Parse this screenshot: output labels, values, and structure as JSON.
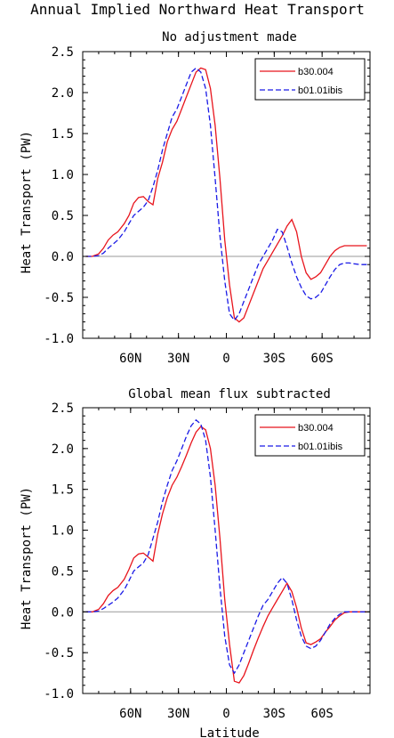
{
  "figure": {
    "title": "Annual Implied Northward Heat Transport",
    "xlabel": "Latitude"
  },
  "chart_data": [
    {
      "type": "line",
      "title": "No adjustment made",
      "ylabel": "Heat Transport (PW)",
      "xlim": [
        90,
        -90
      ],
      "ylim": [
        -1.0,
        2.5
      ],
      "y_ticks": [
        2.5,
        2.0,
        1.5,
        1.0,
        0.5,
        0.0,
        -0.5,
        -1.0
      ],
      "y_tick_labels": [
        "2.5",
        "2.0",
        "1.5",
        "1.0",
        "0.5",
        "0.0",
        "-0.5",
        "-1.0"
      ],
      "x_ticks": [
        60,
        30,
        0,
        -30,
        -60
      ],
      "x_tick_labels": [
        "60N",
        "30N",
        "0",
        "30S",
        "60S"
      ],
      "zero_line": true,
      "legend_position": "top-right",
      "series": [
        {
          "name": "b30.004",
          "color": "#e8141c",
          "dash": "solid",
          "x": [
            88,
            84,
            80,
            77,
            74,
            71,
            68,
            64,
            61,
            58,
            55,
            52,
            49,
            46,
            43,
            40,
            37,
            34,
            31,
            28,
            25,
            22,
            19,
            16,
            13,
            10,
            7,
            4,
            1,
            -2,
            -5,
            -8,
            -11,
            -14,
            -17,
            -20,
            -23,
            -26,
            -29,
            -32,
            -35,
            -38,
            -41,
            -44,
            -47,
            -50,
            -53,
            -56,
            -59,
            -62,
            -65,
            -68,
            -71,
            -74,
            -77,
            -80,
            -84,
            -88
          ],
          "y": [
            0.0,
            0.0,
            0.03,
            0.1,
            0.2,
            0.26,
            0.3,
            0.4,
            0.5,
            0.65,
            0.72,
            0.73,
            0.67,
            0.63,
            0.95,
            1.15,
            1.4,
            1.55,
            1.65,
            1.8,
            1.95,
            2.1,
            2.25,
            2.3,
            2.28,
            2.05,
            1.6,
            0.95,
            0.2,
            -0.35,
            -0.75,
            -0.8,
            -0.75,
            -0.6,
            -0.45,
            -0.3,
            -0.15,
            -0.05,
            0.05,
            0.15,
            0.25,
            0.37,
            0.45,
            0.3,
            0.0,
            -0.2,
            -0.28,
            -0.25,
            -0.2,
            -0.1,
            0.0,
            0.07,
            0.11,
            0.13,
            0.13,
            0.13,
            0.13,
            0.13
          ]
        },
        {
          "name": "b01.01ibis",
          "color": "#1a1ae6",
          "dash": "dashed",
          "x": [
            88,
            84,
            80,
            77,
            74,
            71,
            68,
            64,
            61,
            58,
            55,
            52,
            49,
            46,
            43,
            40,
            37,
            34,
            31,
            28,
            25,
            22,
            19,
            16,
            13,
            10,
            7,
            4,
            1,
            -2,
            -5,
            -8,
            -11,
            -14,
            -17,
            -20,
            -23,
            -26,
            -29,
            -32,
            -35,
            -38,
            -41,
            -44,
            -47,
            -50,
            -53,
            -56,
            -59,
            -62,
            -65,
            -68,
            -71,
            -74,
            -77,
            -80,
            -84,
            -88
          ],
          "y": [
            0.0,
            0.0,
            0.01,
            0.04,
            0.1,
            0.15,
            0.2,
            0.3,
            0.4,
            0.5,
            0.55,
            0.6,
            0.68,
            0.85,
            1.05,
            1.3,
            1.5,
            1.7,
            1.8,
            1.95,
            2.1,
            2.25,
            2.3,
            2.25,
            2.05,
            1.6,
            0.95,
            0.25,
            -0.3,
            -0.7,
            -0.78,
            -0.7,
            -0.55,
            -0.4,
            -0.25,
            -0.1,
            0.0,
            0.1,
            0.2,
            0.33,
            0.3,
            0.12,
            -0.08,
            -0.25,
            -0.38,
            -0.48,
            -0.52,
            -0.5,
            -0.45,
            -0.35,
            -0.25,
            -0.16,
            -0.1,
            -0.08,
            -0.08,
            -0.09,
            -0.1,
            -0.1
          ]
        }
      ]
    },
    {
      "type": "line",
      "title": "Global mean flux subtracted",
      "ylabel": "Heat Transport (PW)",
      "xlim": [
        90,
        -90
      ],
      "ylim": [
        -1.0,
        2.5
      ],
      "y_ticks": [
        2.5,
        2.0,
        1.5,
        1.0,
        0.5,
        0.0,
        -0.5,
        -1.0
      ],
      "y_tick_labels": [
        "2.5",
        "2.0",
        "1.5",
        "1.0",
        "0.5",
        "0.0",
        "-0.5",
        "-1.0"
      ],
      "x_ticks": [
        60,
        30,
        0,
        -30,
        -60
      ],
      "x_tick_labels": [
        "60N",
        "30N",
        "0",
        "30S",
        "60S"
      ],
      "zero_line": true,
      "legend_position": "top-right",
      "series": [
        {
          "name": "b30.004",
          "color": "#e8141c",
          "dash": "solid",
          "x": [
            88,
            84,
            80,
            77,
            74,
            71,
            68,
            64,
            61,
            58,
            55,
            52,
            49,
            46,
            43,
            40,
            37,
            34,
            31,
            28,
            25,
            22,
            19,
            16,
            13,
            10,
            7,
            4,
            1,
            -2,
            -5,
            -8,
            -11,
            -14,
            -17,
            -20,
            -23,
            -26,
            -29,
            -32,
            -35,
            -38,
            -41,
            -44,
            -47,
            -50,
            -53,
            -56,
            -59,
            -62,
            -65,
            -68,
            -71,
            -74,
            -77,
            -80,
            -84,
            -88
          ],
          "y": [
            0.0,
            0.0,
            0.03,
            0.1,
            0.2,
            0.26,
            0.3,
            0.4,
            0.52,
            0.66,
            0.71,
            0.72,
            0.67,
            0.62,
            0.95,
            1.2,
            1.4,
            1.55,
            1.65,
            1.78,
            1.92,
            2.07,
            2.2,
            2.27,
            2.23,
            2.0,
            1.55,
            0.9,
            0.15,
            -0.4,
            -0.85,
            -0.87,
            -0.78,
            -0.63,
            -0.47,
            -0.32,
            -0.18,
            -0.05,
            0.05,
            0.15,
            0.25,
            0.35,
            0.25,
            0.05,
            -0.2,
            -0.38,
            -0.4,
            -0.37,
            -0.33,
            -0.25,
            -0.18,
            -0.1,
            -0.05,
            -0.01,
            0.0,
            0.0,
            0.0,
            0.0
          ]
        },
        {
          "name": "b01.01ibis",
          "color": "#1a1ae6",
          "dash": "dashed",
          "x": [
            88,
            84,
            80,
            77,
            74,
            71,
            68,
            64,
            61,
            58,
            55,
            52,
            49,
            46,
            43,
            40,
            37,
            34,
            31,
            28,
            25,
            22,
            19,
            16,
            13,
            10,
            7,
            4,
            1,
            -2,
            -5,
            -8,
            -11,
            -14,
            -17,
            -20,
            -23,
            -26,
            -29,
            -32,
            -35,
            -38,
            -41,
            -44,
            -47,
            -50,
            -53,
            -56,
            -59,
            -62,
            -65,
            -68,
            -71,
            -74,
            -77,
            -80,
            -84,
            -88
          ],
          "y": [
            0.0,
            0.0,
            0.01,
            0.04,
            0.08,
            0.12,
            0.17,
            0.27,
            0.38,
            0.5,
            0.55,
            0.6,
            0.7,
            0.9,
            1.1,
            1.35,
            1.55,
            1.73,
            1.85,
            2.0,
            2.15,
            2.28,
            2.35,
            2.3,
            2.1,
            1.65,
            1.0,
            0.3,
            -0.3,
            -0.65,
            -0.75,
            -0.65,
            -0.5,
            -0.35,
            -0.2,
            -0.05,
            0.08,
            0.15,
            0.25,
            0.35,
            0.42,
            0.35,
            0.15,
            -0.1,
            -0.3,
            -0.42,
            -0.45,
            -0.42,
            -0.35,
            -0.25,
            -0.15,
            -0.08,
            -0.03,
            0.0,
            0.0,
            0.0,
            0.0,
            0.0
          ]
        }
      ]
    }
  ]
}
